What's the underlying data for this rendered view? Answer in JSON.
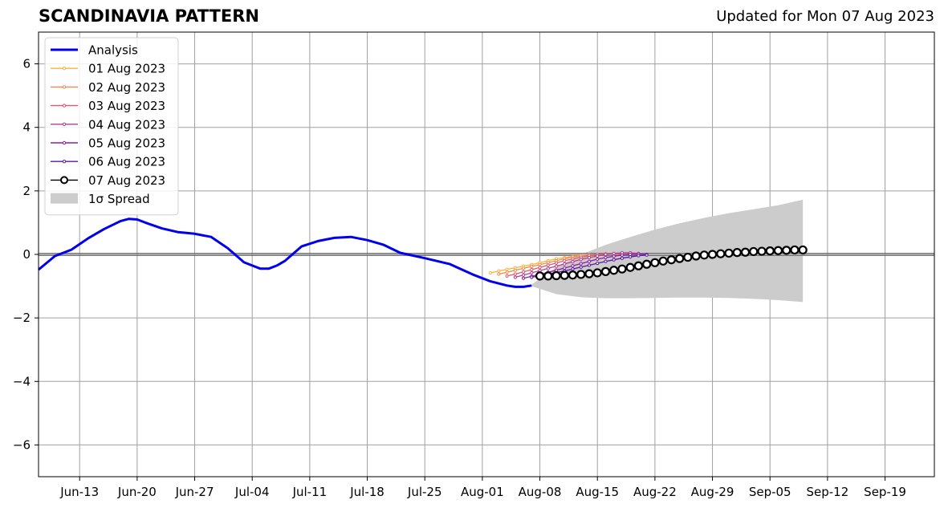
{
  "chart_data": {
    "type": "line",
    "title": "SCANDINAVIA PATTERN",
    "subtitle": "Updated for Mon 07 Aug 2023",
    "xlabel": "",
    "ylabel": "",
    "x_start": "2023-06-08",
    "x_end": "2023-09-25",
    "ylim": [
      -7,
      7
    ],
    "grid": true,
    "zero_line": true,
    "x_ticks": [
      "2023-06-13",
      "2023-06-20",
      "2023-06-27",
      "2023-07-04",
      "2023-07-11",
      "2023-07-18",
      "2023-07-25",
      "2023-08-01",
      "2023-08-08",
      "2023-08-15",
      "2023-08-22",
      "2023-08-29",
      "2023-09-05",
      "2023-09-12",
      "2023-09-19"
    ],
    "x_tick_labels": [
      "Jun-13",
      "Jun-20",
      "Jun-27",
      "Jul-04",
      "Jul-11",
      "Jul-18",
      "Jul-25",
      "Aug-01",
      "Aug-08",
      "Aug-15",
      "Aug-22",
      "Aug-29",
      "Sep-05",
      "Sep-12",
      "Sep-19"
    ],
    "y_ticks": [
      -6,
      -4,
      -2,
      0,
      2,
      4,
      6
    ],
    "y_tick_labels": [
      "−6",
      "−4",
      "−2",
      "0",
      "2",
      "4",
      "6"
    ],
    "legend_position": "upper-left",
    "analysis": {
      "name": "Analysis",
      "color": "#0000ee",
      "x": [
        "2023-06-08",
        "2023-06-10",
        "2023-06-12",
        "2023-06-14",
        "2023-06-16",
        "2023-06-18",
        "2023-06-19",
        "2023-06-20",
        "2023-06-21",
        "2023-06-23",
        "2023-06-25",
        "2023-06-27",
        "2023-06-29",
        "2023-07-01",
        "2023-07-03",
        "2023-07-05",
        "2023-07-06",
        "2023-07-07",
        "2023-07-08",
        "2023-07-10",
        "2023-07-12",
        "2023-07-14",
        "2023-07-16",
        "2023-07-18",
        "2023-07-20",
        "2023-07-22",
        "2023-07-25",
        "2023-07-28",
        "2023-07-31",
        "2023-08-02",
        "2023-08-04",
        "2023-08-05",
        "2023-08-06",
        "2023-08-07"
      ],
      "values": [
        -0.48,
        -0.05,
        0.15,
        0.5,
        0.8,
        1.05,
        1.12,
        1.1,
        1.0,
        0.82,
        0.7,
        0.65,
        0.55,
        0.2,
        -0.25,
        -0.45,
        -0.45,
        -0.35,
        -0.2,
        0.25,
        0.42,
        0.52,
        0.55,
        0.45,
        0.3,
        0.05,
        -0.12,
        -0.3,
        -0.65,
        -0.85,
        -0.98,
        -1.02,
        -1.02,
        -0.98
      ]
    },
    "series": [
      {
        "name": "01 Aug 2023",
        "color": "#f7b33a",
        "start": "2023-08-02",
        "start_value": -0.58,
        "values": [
          -0.58,
          -0.52,
          -0.47,
          -0.42,
          -0.37,
          -0.32,
          -0.26,
          -0.2,
          -0.14,
          -0.1,
          -0.06,
          -0.03
        ]
      },
      {
        "name": "02 Aug 2023",
        "color": "#ef8a4f",
        "start": "2023-08-03",
        "start_value": -0.62,
        "values": [
          -0.62,
          -0.56,
          -0.5,
          -0.44,
          -0.38,
          -0.32,
          -0.26,
          -0.2,
          -0.14,
          -0.08,
          -0.04,
          -0.01,
          0.0
        ]
      },
      {
        "name": "03 Aug 2023",
        "color": "#dc5a6e",
        "start": "2023-08-04",
        "start_value": -0.68,
        "values": [
          -0.68,
          -0.62,
          -0.55,
          -0.48,
          -0.41,
          -0.34,
          -0.27,
          -0.2,
          -0.14,
          -0.09,
          -0.04,
          0.0,
          0.02,
          0.02,
          0.0
        ]
      },
      {
        "name": "04 Aug 2023",
        "color": "#b73e8e",
        "start": "2023-08-05",
        "start_value": -0.72,
        "values": [
          -0.72,
          -0.65,
          -0.58,
          -0.51,
          -0.44,
          -0.37,
          -0.3,
          -0.23,
          -0.16,
          -0.1,
          -0.05,
          0.0,
          0.03,
          0.05,
          0.05,
          0.03
        ]
      },
      {
        "name": "05 Aug 2023",
        "color": "#8c1ea0",
        "start": "2023-08-06",
        "start_value": -0.75,
        "values": [
          -0.75,
          -0.69,
          -0.63,
          -0.56,
          -0.5,
          -0.43,
          -0.36,
          -0.29,
          -0.22,
          -0.15,
          -0.1,
          -0.06,
          -0.02,
          0.0,
          0.01,
          0.0
        ]
      },
      {
        "name": "06 Aug 2023",
        "color": "#5a1aa0",
        "start": "2023-08-07",
        "start_value": -0.72,
        "values": [
          -0.72,
          -0.67,
          -0.62,
          -0.57,
          -0.52,
          -0.46,
          -0.4,
          -0.34,
          -0.28,
          -0.22,
          -0.17,
          -0.12,
          -0.08,
          -0.04,
          -0.02
        ]
      },
      {
        "name": "07 Aug 2023",
        "color": "#000000",
        "start": "2023-08-08",
        "start_value": -0.68,
        "values": [
          -0.68,
          -0.68,
          -0.67,
          -0.66,
          -0.65,
          -0.63,
          -0.61,
          -0.58,
          -0.54,
          -0.5,
          -0.46,
          -0.41,
          -0.36,
          -0.31,
          -0.26,
          -0.21,
          -0.17,
          -0.13,
          -0.09,
          -0.05,
          -0.02,
          0.0,
          0.02,
          0.04,
          0.06,
          0.07,
          0.09,
          0.1,
          0.11,
          0.12,
          0.13,
          0.14,
          0.14
        ]
      }
    ],
    "spread": {
      "name": "1σ Spread",
      "color": "#cccccc",
      "x": [
        "2023-08-07",
        "2023-08-10",
        "2023-08-13",
        "2023-08-16",
        "2023-08-19",
        "2023-08-22",
        "2023-08-25",
        "2023-08-28",
        "2023-08-31",
        "2023-09-03",
        "2023-09-06",
        "2023-09-09"
      ],
      "upper": [
        -0.95,
        -0.4,
        0.0,
        0.3,
        0.55,
        0.78,
        0.98,
        1.15,
        1.3,
        1.42,
        1.55,
        1.72
      ],
      "lower": [
        -1.0,
        -1.25,
        -1.35,
        -1.38,
        -1.38,
        -1.37,
        -1.36,
        -1.36,
        -1.37,
        -1.4,
        -1.44,
        -1.5
      ]
    }
  }
}
